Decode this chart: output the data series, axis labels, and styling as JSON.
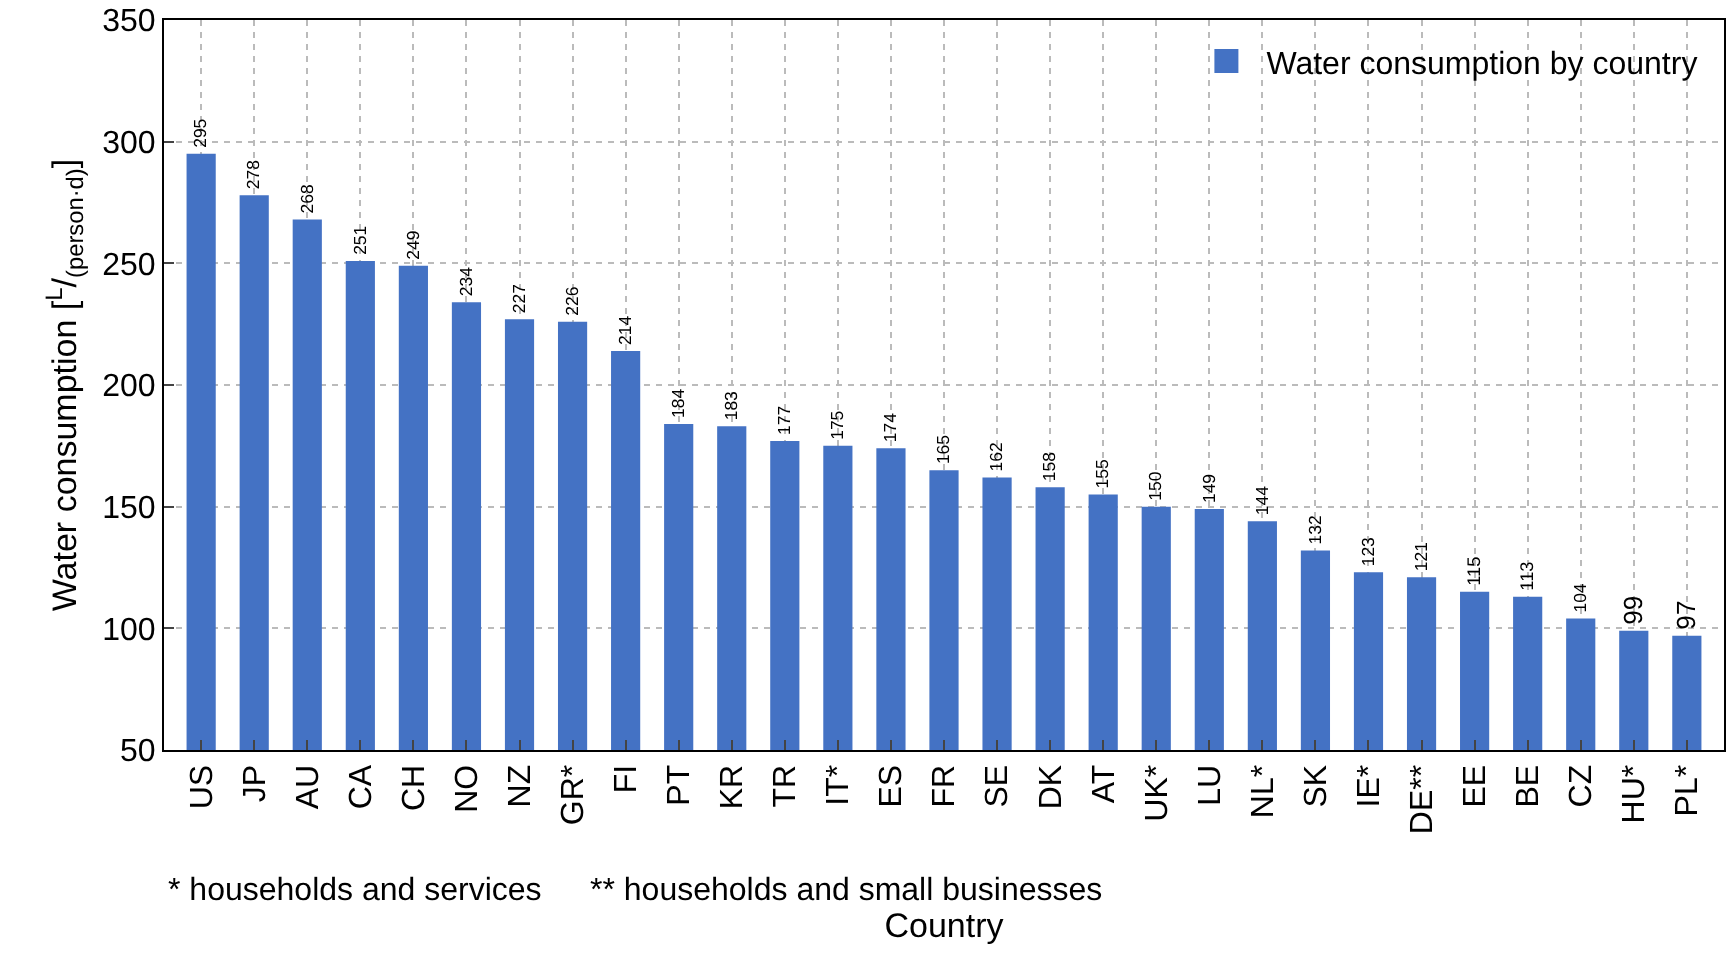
{
  "chart_data": {
    "type": "bar",
    "xlabel": "Country",
    "ylabel": "Water consumption [$^{L}$/$_{(person·d)}$]",
    "categories": [
      "US",
      "JP",
      "AU",
      "CA",
      "CH",
      "NO",
      "NZ",
      "GR*",
      "FI",
      "PT",
      "KR",
      "TR",
      "IT*",
      "ES",
      "FR",
      "SE",
      "DK",
      "AT",
      "UK*",
      "LU",
      "NL*",
      "SK",
      "IE*",
      "DE**",
      "EE",
      "BE",
      "CZ",
      "HU*",
      "PL*"
    ],
    "series": [
      {
        "name": "Water consumption by country",
        "color": "#4472c4",
        "values": [
          295,
          278,
          268,
          251,
          249,
          234,
          227,
          226,
          214,
          184,
          183,
          177,
          175,
          174,
          165,
          162,
          158,
          155,
          150,
          149,
          144,
          132,
          123,
          121,
          115,
          113,
          104,
          99,
          97
        ]
      }
    ],
    "ylim": [
      50,
      350
    ],
    "yticks": [
      50,
      100,
      150,
      200,
      250,
      300,
      350
    ],
    "grid": true,
    "legend": "top right",
    "data_labels": true,
    "annotations": [
      "* households and services",
      "** households and small businesses"
    ]
  }
}
